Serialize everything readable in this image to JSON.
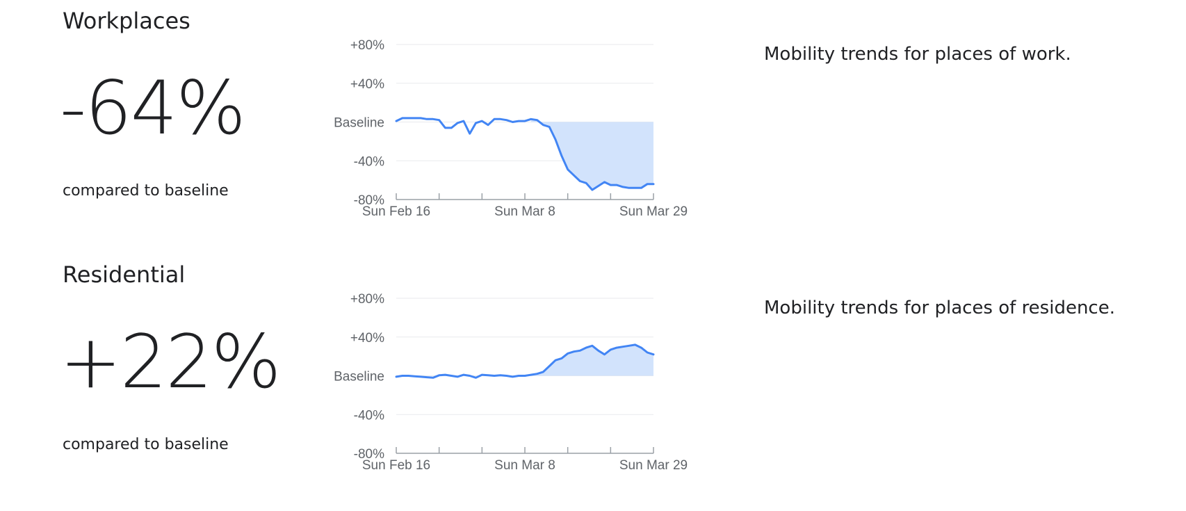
{
  "colors": {
    "line": "#4285f4",
    "fill": "#d2e3fc",
    "grid": "#e8eaed",
    "axis": "#9aa0a6",
    "tick_label": "#5f6368",
    "text": "#202124"
  },
  "sections": [
    {
      "title": "Workplaces",
      "value": "-64%",
      "compare_label": "compared to baseline",
      "description": "Mobility trends for places of work."
    },
    {
      "title": "Residential",
      "value": "+22%",
      "compare_label": "compared to baseline",
      "description": "Mobility trends for places of residence."
    }
  ],
  "chart_data": [
    {
      "type": "area",
      "title": "",
      "xlabel": "",
      "ylabel": "",
      "ylim": [
        -80,
        80
      ],
      "y_ticks": [
        {
          "value": 80,
          "label": "+80%"
        },
        {
          "value": 40,
          "label": "+40%"
        },
        {
          "value": 0,
          "label": "Baseline"
        },
        {
          "value": -40,
          "label": "-40%"
        },
        {
          "value": -80,
          "label": "-80%"
        }
      ],
      "x_start": "2020-02-16",
      "x_end": "2020-03-29",
      "x_tick_marks": [
        "2020-02-16",
        "2020-02-23",
        "2020-03-01",
        "2020-03-08",
        "2020-03-15",
        "2020-03-22",
        "2020-03-29"
      ],
      "x_tick_labels": [
        {
          "date": "2020-02-16",
          "label": "Sun Feb 16"
        },
        {
          "date": "2020-03-08",
          "label": "Sun Mar 8"
        },
        {
          "date": "2020-03-29",
          "label": "Sun Mar 29"
        }
      ],
      "grid": true,
      "legend": "none",
      "series": [
        {
          "x": [
            "2020-02-16",
            "2020-02-17",
            "2020-02-18",
            "2020-02-19",
            "2020-02-20",
            "2020-02-21",
            "2020-02-22",
            "2020-02-23",
            "2020-02-24",
            "2020-02-25",
            "2020-02-26",
            "2020-02-27",
            "2020-02-28",
            "2020-02-29",
            "2020-03-01",
            "2020-03-02",
            "2020-03-03",
            "2020-03-04",
            "2020-03-05",
            "2020-03-06",
            "2020-03-07",
            "2020-03-08",
            "2020-03-09",
            "2020-03-10",
            "2020-03-11",
            "2020-03-12",
            "2020-03-13",
            "2020-03-14",
            "2020-03-15",
            "2020-03-16",
            "2020-03-17",
            "2020-03-18",
            "2020-03-19",
            "2020-03-20",
            "2020-03-21",
            "2020-03-22",
            "2020-03-23",
            "2020-03-24",
            "2020-03-25",
            "2020-03-26",
            "2020-03-27",
            "2020-03-28",
            "2020-03-29"
          ],
          "y": [
            1,
            4,
            4,
            4,
            4,
            3,
            3,
            2,
            -6,
            -6,
            -1,
            1,
            -12,
            -1,
            1,
            -3,
            3,
            3,
            2,
            0,
            1,
            1,
            3,
            2,
            -3,
            -5,
            -18,
            -35,
            -49,
            -55,
            -61,
            -63,
            -70,
            -66,
            -62,
            -65,
            -65,
            -67,
            -68,
            -68,
            -68,
            -64,
            -64
          ]
        }
      ]
    },
    {
      "type": "area",
      "title": "",
      "xlabel": "",
      "ylabel": "",
      "ylim": [
        -80,
        80
      ],
      "y_ticks": [
        {
          "value": 80,
          "label": "+80%"
        },
        {
          "value": 40,
          "label": "+40%"
        },
        {
          "value": 0,
          "label": "Baseline"
        },
        {
          "value": -40,
          "label": "-40%"
        },
        {
          "value": -80,
          "label": "-80%"
        }
      ],
      "x_start": "2020-02-16",
      "x_end": "2020-03-29",
      "x_tick_marks": [
        "2020-02-16",
        "2020-02-23",
        "2020-03-01",
        "2020-03-08",
        "2020-03-15",
        "2020-03-22",
        "2020-03-29"
      ],
      "x_tick_labels": [
        {
          "date": "2020-02-16",
          "label": "Sun Feb 16"
        },
        {
          "date": "2020-03-08",
          "label": "Sun Mar 8"
        },
        {
          "date": "2020-03-29",
          "label": "Sun Mar 29"
        }
      ],
      "grid": true,
      "legend": "none",
      "series": [
        {
          "x": [
            "2020-02-16",
            "2020-02-17",
            "2020-02-18",
            "2020-02-19",
            "2020-02-20",
            "2020-02-21",
            "2020-02-22",
            "2020-02-23",
            "2020-02-24",
            "2020-02-25",
            "2020-02-26",
            "2020-02-27",
            "2020-02-28",
            "2020-02-29",
            "2020-03-01",
            "2020-03-02",
            "2020-03-03",
            "2020-03-04",
            "2020-03-05",
            "2020-03-06",
            "2020-03-07",
            "2020-03-08",
            "2020-03-09",
            "2020-03-10",
            "2020-03-11",
            "2020-03-12",
            "2020-03-13",
            "2020-03-14",
            "2020-03-15",
            "2020-03-16",
            "2020-03-17",
            "2020-03-18",
            "2020-03-19",
            "2020-03-20",
            "2020-03-21",
            "2020-03-22",
            "2020-03-23",
            "2020-03-24",
            "2020-03-25",
            "2020-03-26",
            "2020-03-27",
            "2020-03-28",
            "2020-03-29"
          ],
          "y": [
            -1,
            0,
            0,
            -0.5,
            -1,
            -1.5,
            -2,
            0.5,
            1,
            0,
            -1,
            1,
            0,
            -2,
            1,
            0.5,
            0,
            0.5,
            0,
            -1,
            0,
            0,
            1,
            2,
            4,
            10,
            16,
            18,
            23,
            25,
            26,
            29,
            31,
            26,
            22,
            27,
            29,
            30,
            31,
            32,
            29,
            24,
            22
          ]
        }
      ]
    }
  ]
}
